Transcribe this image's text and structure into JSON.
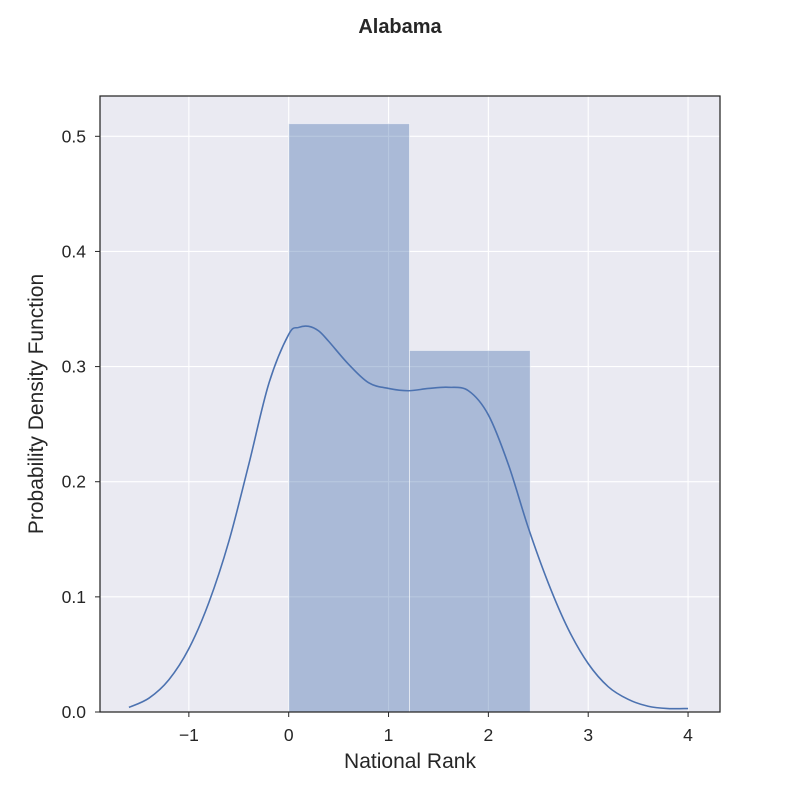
{
  "chart_data": {
    "type": "histogram",
    "title": "Alabama",
    "xlabel": "National Rank",
    "ylabel": "Probability Density Function",
    "xlim": [
      -1.89,
      4.32
    ],
    "ylim": [
      0,
      0.535
    ],
    "xticks": [
      -1,
      0,
      1,
      2,
      3,
      4
    ],
    "xtick_labels": [
      "−1",
      "0",
      "1",
      "2",
      "3",
      "4"
    ],
    "yticks": [
      0.0,
      0.1,
      0.2,
      0.3,
      0.4,
      0.5
    ],
    "ytick_labels": [
      "0.0",
      "0.1",
      "0.2",
      "0.3",
      "0.4",
      "0.5"
    ],
    "grid": true,
    "bars": [
      {
        "x0": 0.0,
        "x1": 1.21,
        "value": 0.511
      },
      {
        "x0": 1.21,
        "x1": 2.42,
        "value": 0.314
      }
    ],
    "kde": {
      "x": [
        -1.6,
        -1.4,
        -1.2,
        -1.0,
        -0.8,
        -0.6,
        -0.4,
        -0.2,
        0.0,
        0.1,
        0.2,
        0.3,
        0.4,
        0.6,
        0.8,
        1.0,
        1.2,
        1.4,
        1.6,
        1.8,
        2.0,
        2.2,
        2.4,
        2.6,
        2.8,
        3.0,
        3.2,
        3.4,
        3.6,
        3.8,
        4.0
      ],
      "y": [
        0.004,
        0.012,
        0.028,
        0.055,
        0.095,
        0.148,
        0.215,
        0.285,
        0.328,
        0.334,
        0.335,
        0.331,
        0.322,
        0.302,
        0.286,
        0.281,
        0.279,
        0.281,
        0.282,
        0.279,
        0.258,
        0.215,
        0.16,
        0.112,
        0.072,
        0.042,
        0.022,
        0.011,
        0.005,
        0.003,
        0.003
      ]
    },
    "colors": {
      "bar": "#4c72b0",
      "line": "#4c72b0",
      "plot_bg": "#eaeaf2",
      "grid": "#ffffff",
      "text": "#262626"
    }
  }
}
